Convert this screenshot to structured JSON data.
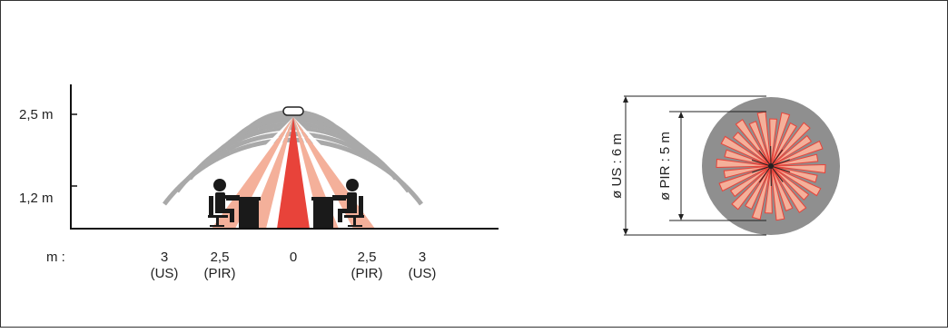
{
  "side_view": {
    "height_labels": {
      "ceiling": "2,5 m",
      "desk": "1,2 m"
    },
    "axis_unit": "m :",
    "distance_ticks": [
      {
        "value": "3",
        "sub": "(US)"
      },
      {
        "value": "2,5",
        "sub": "(PIR)"
      },
      {
        "value": "0",
        "sub": ""
      },
      {
        "value": "2,5",
        "sub": "(PIR)"
      },
      {
        "value": "3",
        "sub": "(US)"
      }
    ]
  },
  "top_view": {
    "us_diameter_label": "ø US : 6 m",
    "pir_diameter_label": "ø PIR : 5 m"
  },
  "colors": {
    "pir_light": "#f4b09a",
    "pir_core": "#e8433a",
    "us_waves": "#a9a9a9",
    "us_disc": "#8f8f8f",
    "figure": "#1a1a1a"
  }
}
